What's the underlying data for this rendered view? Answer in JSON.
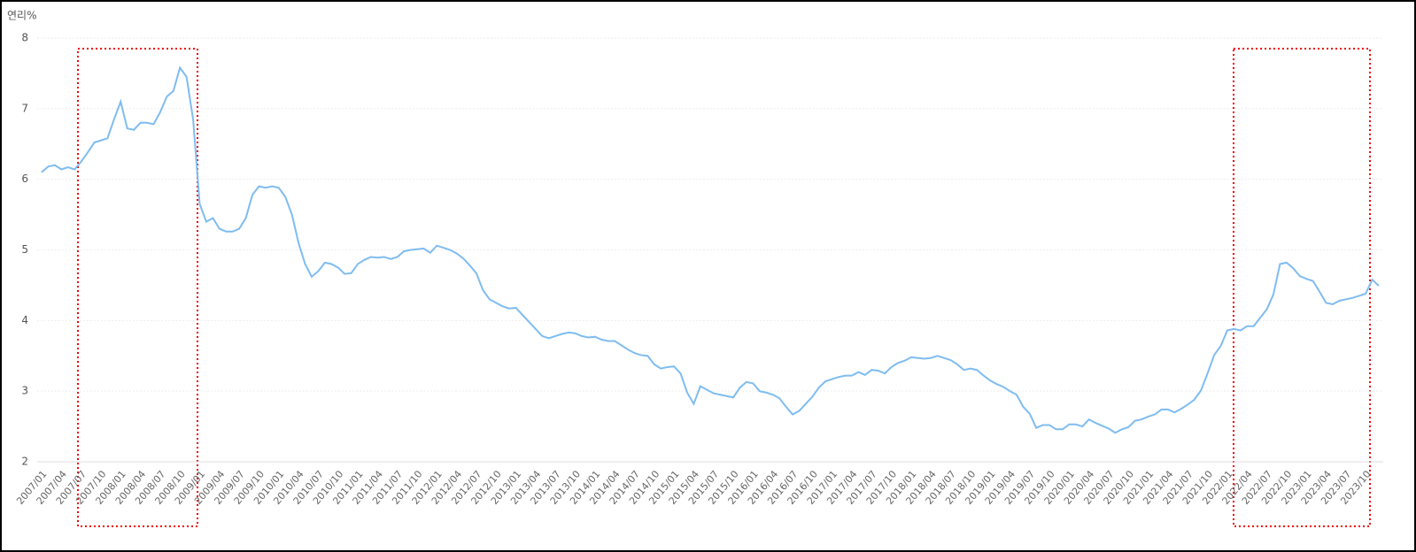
{
  "chart_data": {
    "type": "line",
    "y_label": "연리%",
    "categories": [
      "2007/01",
      null,
      null,
      "2007/04",
      null,
      null,
      "2007/07",
      null,
      null,
      "2007/10",
      null,
      null,
      "2008/01",
      null,
      null,
      "2008/04",
      null,
      null,
      "2008/07",
      null,
      null,
      "2008/10",
      null,
      null,
      "2009/01",
      null,
      null,
      "2009/04",
      null,
      null,
      "2009/07",
      null,
      null,
      "2009/10",
      null,
      null,
      "2010/01",
      null,
      null,
      "2010/04",
      null,
      null,
      "2010/07",
      null,
      null,
      "2010/10",
      null,
      null,
      "2011/01",
      null,
      null,
      "2011/04",
      null,
      null,
      "2011/07",
      null,
      null,
      "2011/10",
      null,
      null,
      "2012/01",
      null,
      null,
      "2012/04",
      null,
      null,
      "2012/07",
      null,
      null,
      "2012/10",
      null,
      null,
      "2013/01",
      null,
      null,
      "2013/04",
      null,
      null,
      "2013/07",
      null,
      null,
      "2013/10",
      null,
      null,
      "2014/01",
      null,
      null,
      "2014/04",
      null,
      null,
      "2014/07",
      null,
      null,
      "2014/10",
      null,
      null,
      "2015/01",
      null,
      null,
      "2015/04",
      null,
      null,
      "2015/07",
      null,
      null,
      "2015/10",
      null,
      null,
      "2016/01",
      null,
      null,
      "2016/04",
      null,
      null,
      "2016/07",
      null,
      null,
      "2016/10",
      null,
      null,
      "2017/01",
      null,
      null,
      "2017/04",
      null,
      null,
      "2017/07",
      null,
      null,
      "2017/10",
      null,
      null,
      "2018/01",
      null,
      null,
      "2018/04",
      null,
      null,
      "2018/07",
      null,
      null,
      "2018/10",
      null,
      null,
      "2019/01",
      null,
      null,
      "2019/04",
      null,
      null,
      "2019/07",
      null,
      null,
      "2019/10",
      null,
      null,
      "2020/01",
      null,
      null,
      "2020/04",
      null,
      null,
      "2020/07",
      null,
      null,
      "2020/10",
      null,
      null,
      "2021/01",
      null,
      null,
      "2021/04",
      null,
      null,
      "2021/07",
      null,
      null,
      "2021/10",
      null,
      null,
      "2022/01",
      null,
      null,
      "2022/04",
      null,
      null,
      "2022/07",
      null,
      null,
      "2022/10",
      null,
      null,
      "2023/01",
      null,
      null,
      "2023/04",
      null,
      null,
      "2023/07",
      null,
      null,
      "2023/10",
      null,
      null
    ],
    "color": "#7fbcf0",
    "values": [
      6.1,
      6.18,
      6.2,
      6.14,
      6.17,
      6.14,
      6.25,
      6.38,
      6.52,
      6.55,
      6.58,
      6.85,
      7.1,
      6.72,
      6.7,
      6.8,
      6.8,
      6.78,
      6.95,
      7.17,
      7.25,
      7.58,
      7.45,
      6.85,
      5.65,
      5.4,
      5.45,
      5.3,
      5.26,
      5.26,
      5.3,
      5.45,
      5.78,
      5.9,
      5.88,
      5.9,
      5.88,
      5.75,
      5.5,
      5.1,
      4.8,
      4.62,
      4.7,
      4.82,
      4.8,
      4.75,
      4.66,
      4.67,
      4.8,
      4.86,
      4.9,
      4.89,
      4.9,
      4.87,
      4.9,
      4.98,
      5.0,
      5.01,
      5.02,
      4.96,
      5.06,
      5.03,
      5.0,
      4.95,
      4.88,
      4.78,
      4.67,
      4.43,
      4.3,
      4.25,
      4.2,
      4.17,
      4.18,
      4.08,
      3.98,
      3.88,
      3.78,
      3.75,
      3.78,
      3.81,
      3.83,
      3.82,
      3.78,
      3.76,
      3.77,
      3.73,
      3.71,
      3.71,
      3.65,
      3.59,
      3.54,
      3.51,
      3.5,
      3.38,
      3.32,
      3.34,
      3.35,
      3.25,
      2.98,
      2.82,
      3.07,
      3.02,
      2.97,
      2.95,
      2.93,
      2.91,
      3.05,
      3.13,
      3.11,
      3.0,
      2.98,
      2.95,
      2.9,
      2.78,
      2.67,
      2.72,
      2.82,
      2.92,
      3.05,
      3.14,
      3.17,
      3.2,
      3.22,
      3.22,
      3.27,
      3.23,
      3.3,
      3.29,
      3.25,
      3.34,
      3.4,
      3.43,
      3.48,
      3.47,
      3.46,
      3.47,
      3.5,
      3.47,
      3.44,
      3.38,
      3.3,
      3.32,
      3.3,
      3.22,
      3.15,
      3.1,
      3.06,
      3.0,
      2.95,
      2.78,
      2.68,
      2.48,
      2.52,
      2.52,
      2.46,
      2.46,
      2.53,
      2.53,
      2.5,
      2.6,
      2.55,
      2.51,
      2.47,
      2.41,
      2.46,
      2.49,
      2.58,
      2.6,
      2.64,
      2.67,
      2.74,
      2.74,
      2.7,
      2.75,
      2.81,
      2.88,
      3.01,
      3.25,
      3.51,
      3.64,
      3.86,
      3.88,
      3.86,
      3.92,
      3.92,
      4.04,
      4.16,
      4.37,
      4.8,
      4.82,
      4.74,
      4.63,
      4.59,
      4.56,
      4.41,
      4.25,
      4.23,
      4.28,
      4.3,
      4.32,
      4.35,
      4.38,
      4.58,
      4.49
    ],
    "ylim": [
      2,
      8
    ],
    "yticks": [
      2,
      3,
      4,
      5,
      6,
      7,
      8
    ],
    "grid": true
  }
}
